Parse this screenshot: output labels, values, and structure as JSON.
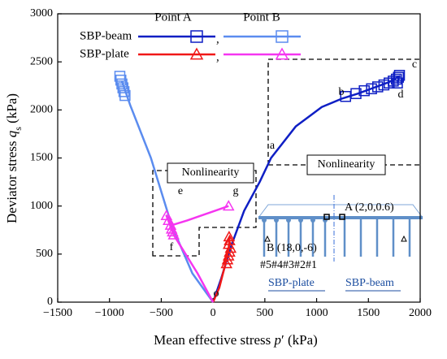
{
  "chart_data": {
    "type": "line",
    "xlabel": [
      "Mean effective stress ",
      "p",
      "′ (kPa)"
    ],
    "ylabel": [
      "Deviator stress ",
      "q",
      "s",
      " (kPa)"
    ],
    "xlim": [
      -1500,
      2000
    ],
    "xticks": [
      {
        "value": -1500,
        "label": "−1500"
      },
      {
        "value": -1000,
        "label": "−1000"
      },
      {
        "value": -500,
        "label": "−500"
      },
      0,
      500,
      1000,
      1500,
      2000
    ],
    "ylim": [
      0,
      3000
    ],
    "yticks": [
      0,
      500,
      1000,
      1500,
      2000,
      2500,
      3000
    ],
    "legend_columns": [
      "Point A",
      "Point B"
    ],
    "legend_rows": [
      "SBP-beam",
      "SBP-plate"
    ],
    "legend_separator": ",",
    "series": [
      {
        "name": "SBP-beam Point A",
        "color": "#0f1fc4",
        "marker": "square",
        "x": [
          0,
          80,
          180,
          300,
          450,
          560,
          800,
          1050,
          1250,
          1400,
          1550,
          1700,
          1800,
          1780
        ],
        "y": [
          0,
          250,
          600,
          950,
          1250,
          1500,
          1830,
          2030,
          2120,
          2170,
          2230,
          2290,
          2350,
          2280
        ],
        "markers": {
          "x": [
            1280,
            1380,
            1460,
            1530,
            1590,
            1650,
            1700,
            1740,
            1770,
            1790,
            1800,
            1780
          ],
          "y": [
            2140,
            2170,
            2200,
            2220,
            2240,
            2260,
            2280,
            2300,
            2320,
            2340,
            2360,
            2280
          ]
        }
      },
      {
        "name": "SBP-beam Point B",
        "color": "#5b8cef",
        "marker": "square",
        "x": [
          0,
          -200,
          -400,
          -600,
          -800,
          -880
        ],
        "y": [
          0,
          300,
          800,
          1500,
          2050,
          2300
        ],
        "markers": {
          "x": [
            -900,
            -890,
            -880,
            -870,
            -860,
            -850
          ],
          "y": [
            2350,
            2310,
            2270,
            2230,
            2190,
            2150
          ]
        }
      },
      {
        "name": "SBP-plate Point A",
        "color": "#f01818",
        "marker": "triangle",
        "x": [
          0,
          60,
          120,
          150,
          160
        ],
        "y": [
          0,
          150,
          400,
          550,
          680
        ],
        "markers": {
          "x": [
            130,
            140,
            150,
            160,
            170,
            150,
            160,
            155
          ],
          "y": [
            400,
            440,
            480,
            520,
            560,
            600,
            640,
            680
          ]
        }
      },
      {
        "name": "SBP-plate Point B",
        "color": "#f535f0",
        "marker": "triangle",
        "x": [
          0,
          -150,
          -380,
          -450,
          -400,
          -250,
          150
        ],
        "y": [
          0,
          300,
          700,
          900,
          800,
          850,
          1000
        ],
        "markers": {
          "x": [
            -450,
            -430,
            -410,
            -400,
            -390,
            -380,
            150
          ],
          "y": [
            900,
            850,
            800,
            760,
            730,
            700,
            1000
          ]
        }
      }
    ],
    "annotations": [
      "a",
      "b",
      "c",
      "d",
      "e",
      "f",
      "g",
      "o"
    ],
    "nonlinearity_labels": [
      "Nonlinearity",
      "Nonlinearity"
    ],
    "inset": {
      "point_a": "A (2,0,0.6)",
      "point_b": "B (18,0,-6)",
      "piles": "#5#4#3#2#1",
      "left": "SBP-plate",
      "right": "SBP-beam"
    }
  }
}
